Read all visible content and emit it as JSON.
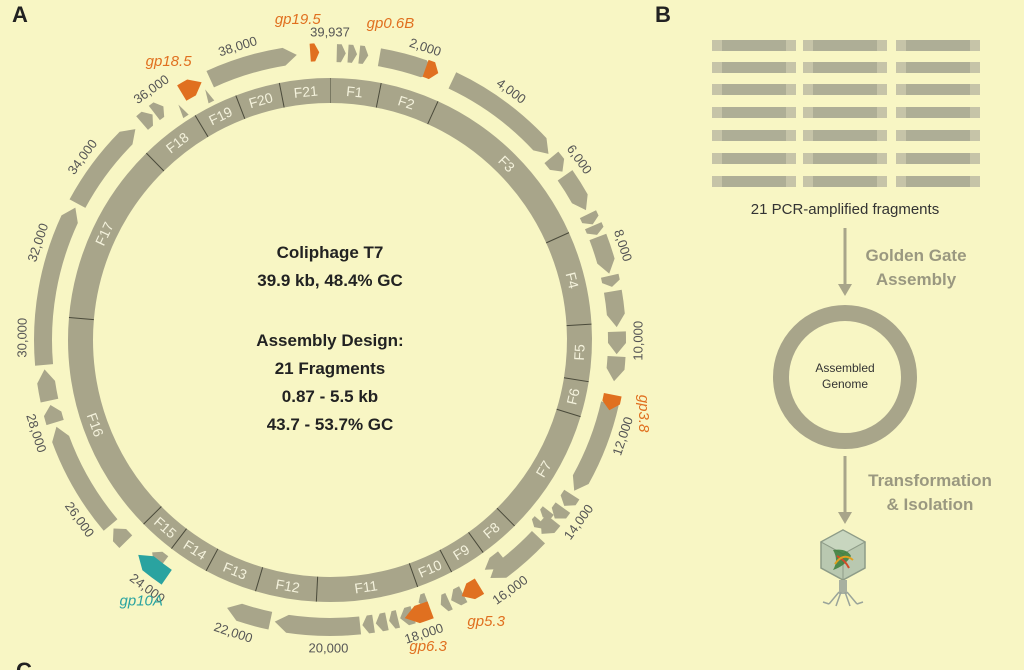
{
  "panel_labels": {
    "a": "A",
    "b": "B",
    "c": "C"
  },
  "genome": {
    "title": "Coliphage T7",
    "stats": "39.9 kb, 48.4% GC",
    "design_heading": "Assembly Design:",
    "fragment_count": "21 Fragments",
    "size_range": "0.87 - 5.5 kb",
    "gc_range": "43.7 - 53.7% GC"
  },
  "ticks": [
    {
      "label": "2,000",
      "value": 2000
    },
    {
      "label": "4,000",
      "value": 4000
    },
    {
      "label": "6,000",
      "value": 6000
    },
    {
      "label": "8,000",
      "value": 8000
    },
    {
      "label": "10,000",
      "value": 10000
    },
    {
      "label": "12,000",
      "value": 12000
    },
    {
      "label": "14,000",
      "value": 14000
    },
    {
      "label": "16,000",
      "value": 16000
    },
    {
      "label": "18,000",
      "value": 18000
    },
    {
      "label": "20,000",
      "value": 20000
    },
    {
      "label": "22,000",
      "value": 22000
    },
    {
      "label": "24,000",
      "value": 24000
    },
    {
      "label": "26,000",
      "value": 26000
    },
    {
      "label": "28,000",
      "value": 28000
    },
    {
      "label": "30,000",
      "value": 30000
    },
    {
      "label": "32,000",
      "value": 32000
    },
    {
      "label": "34,000",
      "value": 34000
    },
    {
      "label": "36,000",
      "value": 36000
    },
    {
      "label": "38,000",
      "value": 38000
    },
    {
      "label": "39,937",
      "value": 39937
    }
  ],
  "fragments": [
    {
      "label": "F1",
      "start": 0,
      "end": 1250
    },
    {
      "label": "F2",
      "start": 1250,
      "end": 2700
    },
    {
      "label": "F3",
      "start": 2700,
      "end": 7300
    },
    {
      "label": "F4",
      "start": 7300,
      "end": 9600
    },
    {
      "label": "F5",
      "start": 9600,
      "end": 11000
    },
    {
      "label": "F6",
      "start": 11000,
      "end": 11870
    },
    {
      "label": "F7",
      "start": 11870,
      "end": 15000
    },
    {
      "label": "F8",
      "start": 15000,
      "end": 16000
    },
    {
      "label": "F9",
      "start": 16000,
      "end": 16900
    },
    {
      "label": "F10",
      "start": 16900,
      "end": 17800
    },
    {
      "label": "F11",
      "start": 17800,
      "end": 20300
    },
    {
      "label": "F12",
      "start": 20300,
      "end": 21800
    },
    {
      "label": "F13",
      "start": 21800,
      "end": 23100
    },
    {
      "label": "F14",
      "start": 23100,
      "end": 24100
    },
    {
      "label": "F15",
      "start": 24100,
      "end": 25000
    },
    {
      "label": "F16",
      "start": 25000,
      "end": 30500
    },
    {
      "label": "F17",
      "start": 30500,
      "end": 35000
    },
    {
      "label": "F18",
      "start": 35000,
      "end": 36500
    },
    {
      "label": "F19",
      "start": 36500,
      "end": 37600
    },
    {
      "label": "F20",
      "start": 37600,
      "end": 38700
    },
    {
      "label": "F21",
      "start": 38700,
      "end": 39937
    }
  ],
  "genes": [
    {
      "start": 150,
      "end": 350
    },
    {
      "start": 400,
      "end": 600
    },
    {
      "start": 650,
      "end": 850
    },
    {
      "start": 1100,
      "end": 2400
    },
    {
      "start": 2800,
      "end": 5500
    },
    {
      "start": 5600,
      "end": 6000
    },
    {
      "start": 6100,
      "end": 7000
    },
    {
      "start": 7100,
      "end": 7350
    },
    {
      "start": 7380,
      "end": 7600
    },
    {
      "start": 7650,
      "end": 8500
    },
    {
      "start": 8550,
      "end": 8800
    },
    {
      "start": 8900,
      "end": 9700
    },
    {
      "start": 9800,
      "end": 10300
    },
    {
      "start": 10350,
      "end": 10900
    },
    {
      "start": 11400,
      "end": 13500
    },
    {
      "start": 13600,
      "end": 13900
    },
    {
      "start": 13950,
      "end": 14250
    },
    {
      "start": 14300,
      "end": 14700
    },
    {
      "start": 14800,
      "end": 16200
    },
    {
      "start": 16900,
      "end": 17200
    },
    {
      "start": 17250,
      "end": 17450
    },
    {
      "start": 18100,
      "end": 18400
    },
    {
      "start": 18450,
      "end": 18650
    },
    {
      "start": 18700,
      "end": 18950
    },
    {
      "start": 19000,
      "end": 19250
    },
    {
      "start": 19300,
      "end": 21200
    },
    {
      "start": 21300,
      "end": 22300
    },
    {
      "start": 25000,
      "end": 25400
    },
    {
      "start": 25500,
      "end": 28000
    },
    {
      "start": 28100,
      "end": 28500
    },
    {
      "start": 28600,
      "end": 29300
    },
    {
      "start": 29400,
      "end": 33000
    },
    {
      "start": 33100,
      "end": 35200
    },
    {
      "start": 35400,
      "end": 35700
    },
    {
      "start": 35750,
      "end": 36000
    },
    {
      "start": 37200,
      "end": 39200
    }
  ],
  "inner_genes": [
    {
      "start": 14200,
      "end": 14400
    },
    {
      "start": 14500,
      "end": 14700
    },
    {
      "start": 15700,
      "end": 16200
    },
    {
      "start": 17700,
      "end": 17900
    },
    {
      "start": 24050,
      "end": 24400
    }
  ],
  "genes_inner_ticks": [
    {
      "pos": 37000
    },
    {
      "pos": 36300
    }
  ],
  "highlight_genes": [
    {
      "label": "gp0.6B",
      "start": 2150,
      "end": 2450,
      "label_pos": 1200,
      "color": "#e07020"
    },
    {
      "label": "gp3.8",
      "start": 11200,
      "end": 11550,
      "label_pos": 11450,
      "color": "#e07020"
    },
    {
      "label": "gp5.3",
      "start": 16500,
      "end": 16950,
      "label_pos": 16750,
      "color": "#e07020"
    },
    {
      "label": "gp6.3",
      "start": 17700,
      "end": 18300,
      "label_pos": 18000,
      "color": "#e07020"
    },
    {
      "label": "gp10A",
      "start": 23800,
      "end": 24600,
      "label_pos": 23950,
      "color": "#2aa3a0"
    },
    {
      "label": "gp18.5",
      "start": 36500,
      "end": 37000,
      "label_pos": 36600,
      "color": "#e07020"
    },
    {
      "label": "gp19.5",
      "start": 39500,
      "end": 39700,
      "label_pos": 39300,
      "color": "#e07020"
    }
  ],
  "colors": {
    "background": "#f8f6c4",
    "gene_gray": "#a8a58a",
    "ring_gray": "#a8a58a",
    "text_dark": "#222222",
    "text_tick": "#555555",
    "orange": "#e07020",
    "teal": "#2aa3a0",
    "panel_b_text": "#9a9880"
  },
  "panel_b": {
    "fragments_label": "21 PCR-amplified fragments",
    "step1": [
      "Golden Gate",
      "Assembly"
    ],
    "assembled_label": [
      "Assembled",
      "Genome"
    ],
    "step2": [
      "Transformation",
      "& Isolation"
    ]
  }
}
